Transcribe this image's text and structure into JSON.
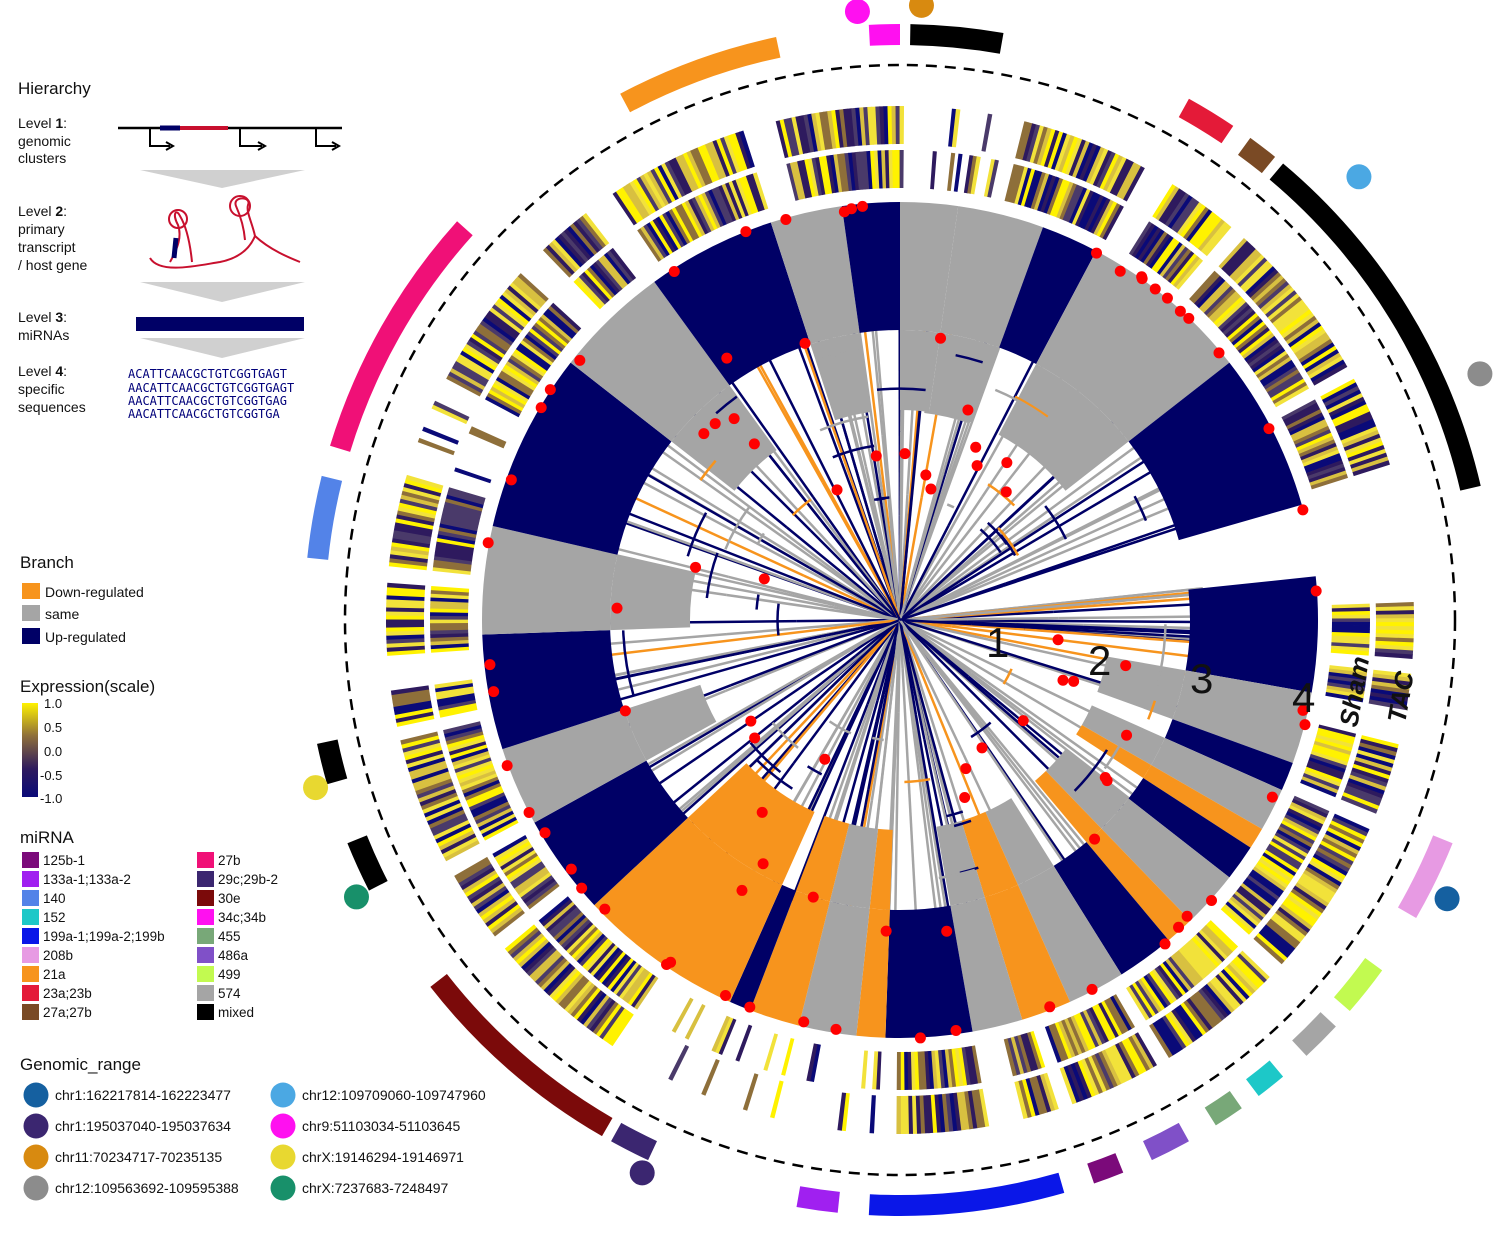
{
  "hierarchy": {
    "title": "Hierarchy",
    "levels": [
      {
        "prefix": "Level ",
        "num": "1",
        "suffix": ":",
        "lines": [
          "genomic",
          "clusters"
        ]
      },
      {
        "prefix": "Level ",
        "num": "2",
        "suffix": ":",
        "lines": [
          "primary",
          "transcript",
          "/ host gene"
        ]
      },
      {
        "prefix": "Level ",
        "num": "3",
        "suffix": ":",
        "lines": [
          "miRNAs"
        ]
      },
      {
        "prefix": "Level ",
        "num": "4",
        "suffix": ":",
        "lines": [
          "specific",
          "sequences"
        ]
      }
    ],
    "sequences": [
      "ACATTCAACGCTGTCGGTGAGT",
      "AACATTCAACGCTGTCGGTGAGT",
      "AACATTCAACGCTGTCGGTGAG",
      "AACATTCAACGCTGTCGGTGA"
    ]
  },
  "branch": {
    "title": "Branch",
    "items": [
      {
        "label": "Down-regulated",
        "color": "#F7941D"
      },
      {
        "label": "same",
        "color": "#A5A5A5"
      },
      {
        "label": "Up-regulated",
        "color": "#000066"
      }
    ]
  },
  "expression": {
    "title": "Expression(scale)",
    "ticks": [
      "1.0",
      "0.5",
      "0.0",
      "-0.5",
      "-1.0"
    ],
    "colors": [
      "#FFF200",
      "#8E6F3A",
      "#2E1A5E",
      "#0A0A78"
    ]
  },
  "mirna": {
    "title": "miRNA",
    "items": [
      {
        "label": "125b-1",
        "color": "#7B0A7A"
      },
      {
        "label": "133a-1;133a-2",
        "color": "#A020F0"
      },
      {
        "label": "140",
        "color": "#5383E8"
      },
      {
        "label": "152",
        "color": "#1DC8C8"
      },
      {
        "label": "199a-1;199a-2;199b",
        "color": "#0A17E8"
      },
      {
        "label": "208b",
        "color": "#E79AE3"
      },
      {
        "label": "21a",
        "color": "#F7941D"
      },
      {
        "label": "23a;23b",
        "color": "#E41A38"
      },
      {
        "label": "27a;27b",
        "color": "#7A4A25"
      },
      {
        "label": "27b",
        "color": "#F01077"
      },
      {
        "label": "29c;29b-2",
        "color": "#3B2670"
      },
      {
        "label": "30e",
        "color": "#7B0A0A"
      },
      {
        "label": "34c;34b",
        "color": "#FF10F0"
      },
      {
        "label": "455",
        "color": "#78A878"
      },
      {
        "label": "486a",
        "color": "#8050C8"
      },
      {
        "label": "499",
        "color": "#C2FA50"
      },
      {
        "label": "574",
        "color": "#A5A5A5"
      },
      {
        "label": "mixed",
        "color": "#000000"
      }
    ]
  },
  "genomic": {
    "title": "Genomic_range",
    "items": [
      {
        "label": "chr1:162217814-162223477",
        "color": "#1560A0"
      },
      {
        "label": "chr1:195037040-195037634",
        "color": "#3B2670"
      },
      {
        "label": "chr11:70234717-70235135",
        "color": "#D88A10"
      },
      {
        "label": "chr12:109563692-109595388",
        "color": "#8C8C8C"
      },
      {
        "label": "chr12:109709060-109747960",
        "color": "#4BA8E3"
      },
      {
        "label": "chr9:51103034-51103645",
        "color": "#FF10F0"
      },
      {
        "label": "chrX:19146294-19146971",
        "color": "#E8D830"
      },
      {
        "label": "chrX:7237683-7248497",
        "color": "#18906A"
      }
    ]
  },
  "rings": {
    "labels": [
      "1",
      "2",
      "3",
      "4"
    ],
    "tracks": [
      "Sham",
      "TAC"
    ]
  }
}
